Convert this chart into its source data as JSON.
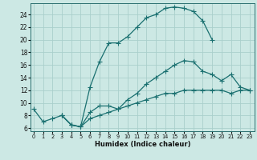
{
  "title": "",
  "xlabel": "Humidex (Indice chaleur)",
  "bg_color": "#cce8e4",
  "grid_color": "#aacfcc",
  "line_color": "#1a7070",
  "curve1_x": [
    0,
    1,
    2,
    3,
    4,
    5,
    6,
    7,
    8,
    9,
    10,
    11,
    12,
    13,
    14,
    15,
    16,
    17,
    18,
    19
  ],
  "curve1_y": [
    9,
    7,
    7.5,
    8,
    6.5,
    6.2,
    12.5,
    16.5,
    19.5,
    19.5,
    20.5,
    22,
    23.5,
    24,
    25,
    25.2,
    25,
    24.5,
    23,
    20
  ],
  "curve2_x": [
    3,
    4,
    5,
    6,
    7,
    8,
    9,
    10,
    11,
    12,
    13,
    14,
    15,
    16,
    17,
    18,
    19,
    20,
    21,
    22,
    23
  ],
  "curve2_y": [
    8.0,
    6.5,
    6.2,
    8.5,
    9.5,
    9.5,
    9.0,
    10.5,
    11.5,
    13.0,
    14.0,
    15.0,
    16.0,
    16.7,
    16.5,
    15.0,
    14.5,
    13.5,
    14.5,
    12.5,
    12.0
  ],
  "curve3_x": [
    3,
    4,
    5,
    6,
    7,
    8,
    9,
    10,
    11,
    12,
    13,
    14,
    15,
    16,
    17,
    18,
    19,
    20,
    21,
    22,
    23
  ],
  "curve3_y": [
    8.0,
    6.5,
    6.2,
    7.5,
    8.0,
    8.5,
    9.0,
    9.5,
    10.0,
    10.5,
    11.0,
    11.5,
    11.5,
    12.0,
    12.0,
    12.0,
    12.0,
    12.0,
    11.5,
    12.0,
    12.0
  ],
  "xlim": [
    -0.3,
    23.5
  ],
  "ylim": [
    5.5,
    25.8
  ],
  "yticks": [
    6,
    8,
    10,
    12,
    14,
    16,
    18,
    20,
    22,
    24
  ],
  "xticks": [
    0,
    1,
    2,
    3,
    4,
    5,
    6,
    7,
    8,
    9,
    10,
    11,
    12,
    13,
    14,
    15,
    16,
    17,
    18,
    19,
    20,
    21,
    22,
    23
  ]
}
